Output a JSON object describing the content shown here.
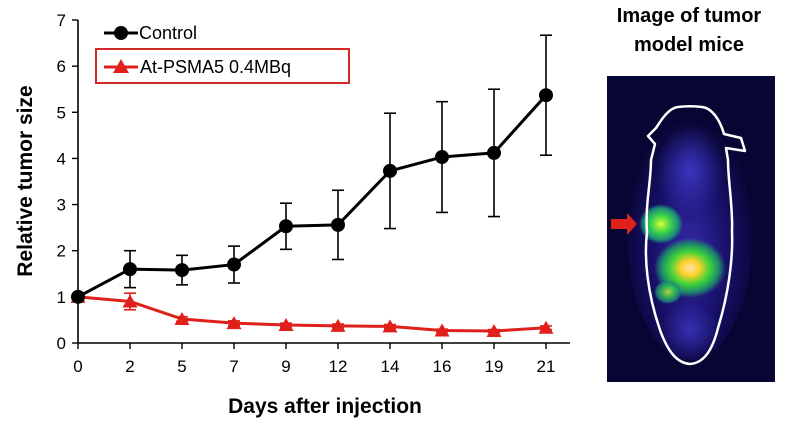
{
  "chart_data": {
    "type": "line",
    "xlabel": "Days after injection",
    "ylabel": "Relative tumor size",
    "categories": [
      "0",
      "2",
      "5",
      "7",
      "9",
      "12",
      "14",
      "16",
      "19",
      "21"
    ],
    "ylim": [
      0,
      7
    ],
    "yticks": [
      "0",
      "1",
      "2",
      "3",
      "4",
      "5",
      "6",
      "7"
    ],
    "legend_position": "top-left",
    "series": [
      {
        "name": "Control",
        "color": "#000000",
        "marker": "circle",
        "values": [
          1.0,
          1.6,
          1.58,
          1.7,
          2.53,
          2.56,
          3.73,
          4.03,
          4.12,
          5.37
        ],
        "error": [
          0.0,
          0.4,
          0.32,
          0.4,
          0.5,
          0.75,
          1.25,
          1.2,
          1.38,
          1.3
        ]
      },
      {
        "name": "At-PSMA5 0.4MBq",
        "color": "#e0201b",
        "marker": "triangle",
        "values": [
          1.0,
          0.9,
          0.52,
          0.43,
          0.39,
          0.37,
          0.36,
          0.27,
          0.26,
          0.33
        ],
        "error": [
          0.0,
          0.18,
          0.05,
          0.05,
          0.04,
          0.04,
          0.04,
          0.03,
          0.03,
          0.04
        ]
      }
    ]
  },
  "inset": {
    "title_line1": "Image of tumor",
    "title_line2": "model mice",
    "arrow_color": "#e0201b",
    "image_description_icon": "mouse-scan-image"
  }
}
